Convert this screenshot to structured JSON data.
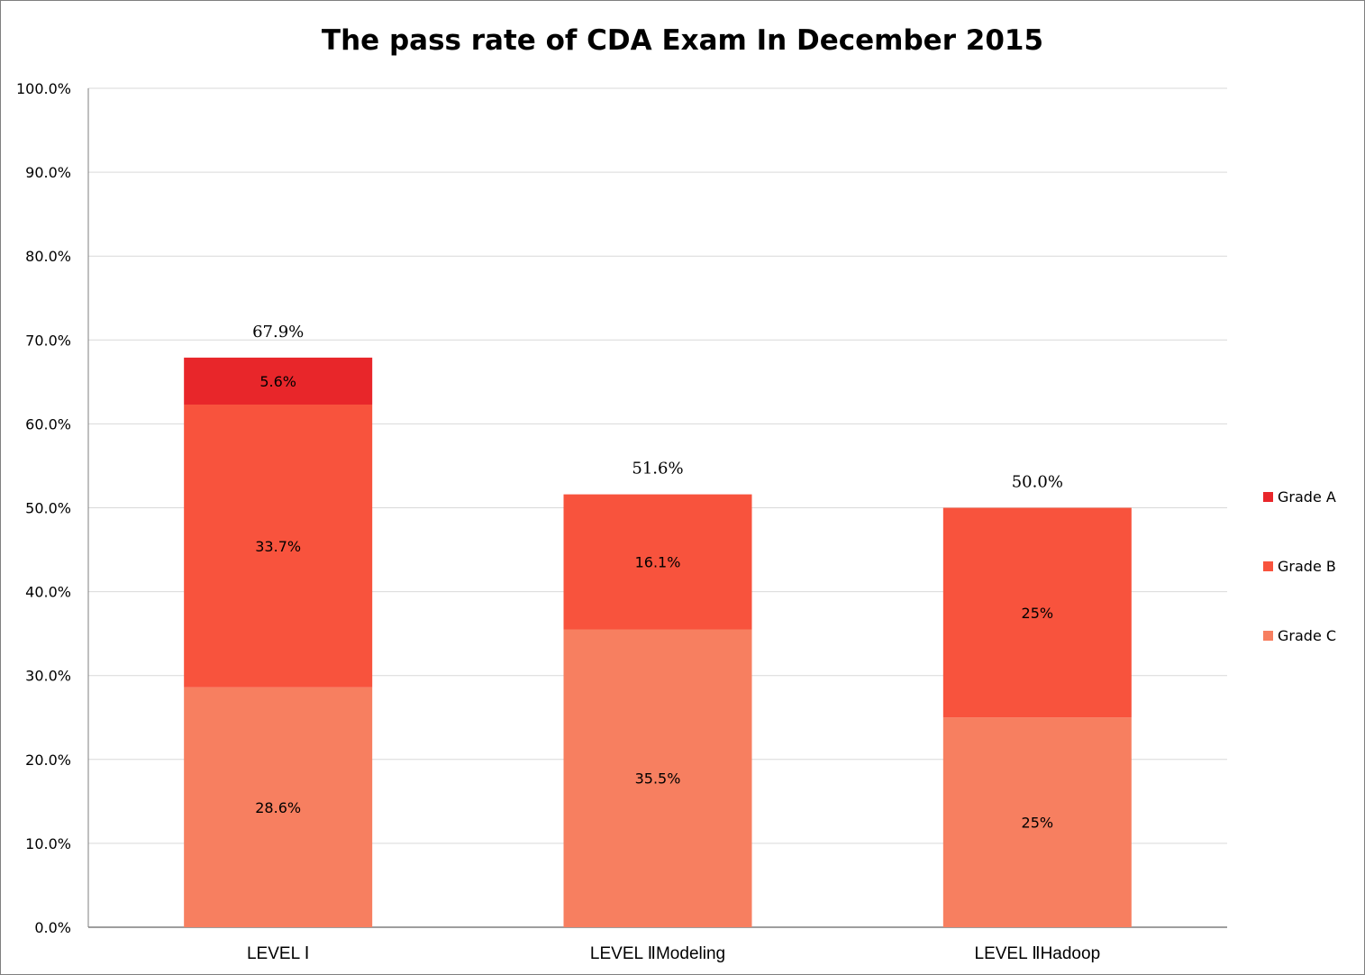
{
  "chart_data": {
    "type": "bar",
    "stacked": true,
    "title": "The pass rate of CDA Exam In December 2015",
    "categories": [
      "LEVEL Ⅰ",
      "LEVEL ⅡModeling",
      "LEVEL ⅡHadoop"
    ],
    "series": [
      {
        "name": "Grade C",
        "color": "#F77F60",
        "values": [
          28.6,
          35.5,
          25
        ],
        "labels": [
          "28.6%",
          "35.5%",
          "25%"
        ]
      },
      {
        "name": "Grade B",
        "color": "#F8533D",
        "values": [
          33.7,
          16.1,
          25
        ],
        "labels": [
          "33.7%",
          "16.1%",
          "25%"
        ]
      },
      {
        "name": "Grade A",
        "color": "#E8262A",
        "values": [
          5.6,
          0,
          0
        ],
        "labels": [
          "5.6%",
          "",
          ""
        ]
      }
    ],
    "totals": [
      "67.9%",
      "51.6%",
      "50.0%"
    ],
    "ylim": [
      0,
      100
    ],
    "yticks": [
      "0.0%",
      "10.0%",
      "20.0%",
      "30.0%",
      "40.0%",
      "50.0%",
      "60.0%",
      "70.0%",
      "80.0%",
      "90.0%",
      "100.0%"
    ],
    "grid": true,
    "legend_position": "right",
    "legend_order": [
      "Grade A",
      "Grade B",
      "Grade C"
    ]
  }
}
